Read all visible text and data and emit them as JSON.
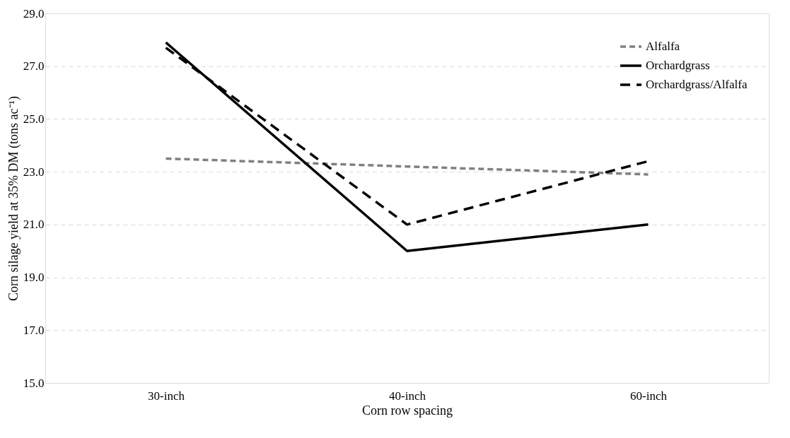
{
  "chart_data": {
    "type": "line",
    "xlabel": "Corn row spacing",
    "ylabel": "Corn silage yield at 35% DM (tons ac⁻¹)",
    "categories": [
      "30-inch",
      "40-inch",
      "60-inch"
    ],
    "series": [
      {
        "name": "Alfalfa",
        "color": "#808080",
        "line_style": "dotted",
        "values": [
          23.5,
          23.2,
          22.9
        ]
      },
      {
        "name": "Orchardgrass",
        "color": "#000000",
        "line_style": "solid",
        "values": [
          27.9,
          20.0,
          21.0
        ]
      },
      {
        "name": "Orchardgrass/Alfalfa",
        "color": "#000000",
        "line_style": "dashed",
        "values": [
          27.7,
          21.0,
          23.4
        ]
      }
    ],
    "ylim": [
      15.0,
      29.0
    ],
    "yticks": [
      {
        "value": 15,
        "label": "15.0"
      },
      {
        "value": 17,
        "label": "17.0"
      },
      {
        "value": 19,
        "label": "19.0"
      },
      {
        "value": 21,
        "label": "21.0"
      },
      {
        "value": 23,
        "label": "23.0"
      },
      {
        "value": 25,
        "label": "25.0"
      },
      {
        "value": 27,
        "label": "27.0"
      },
      {
        "value": 29,
        "label": "29.0"
      }
    ],
    "grid": "y",
    "legend": "top right",
    "marker": "none"
  }
}
